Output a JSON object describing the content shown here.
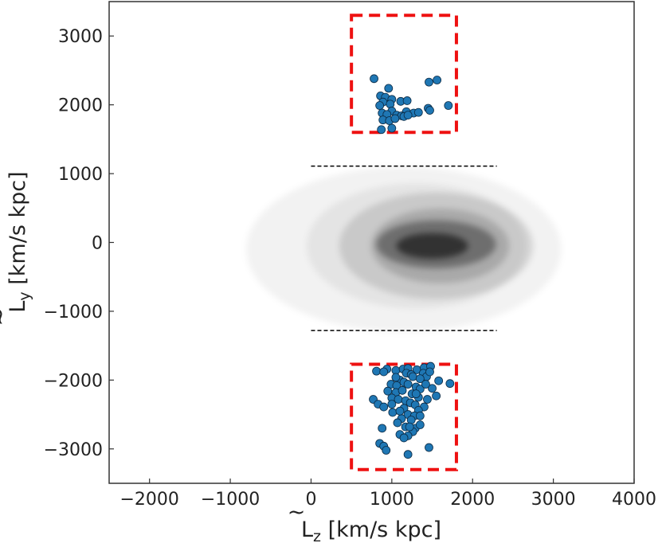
{
  "chart_data": {
    "type": "scatter",
    "title": "",
    "xlabel": {
      "tilde": "~",
      "base": "L",
      "sub": "z",
      "units": " [km/s kpc]"
    },
    "ylabel": {
      "tilde": "~",
      "base": "L",
      "sub": "y",
      "units": " [km/s kpc]"
    },
    "xlim": [
      -2500,
      4000
    ],
    "ylim": [
      -3500,
      3500
    ],
    "xticks": [
      -2000,
      -1000,
      0,
      1000,
      2000,
      3000,
      4000
    ],
    "yticks": [
      -3000,
      -2000,
      -1000,
      0,
      1000,
      2000,
      3000
    ],
    "xtick_labels": [
      "−2000",
      "−1000",
      "0",
      "1000",
      "2000",
      "3000",
      "4000"
    ],
    "ytick_labels": [
      "−3000",
      "−2000",
      "−1000",
      "0",
      "1000",
      "2000",
      "3000"
    ],
    "grid": false,
    "legend": "none",
    "colors": {
      "points": "#1f77b4",
      "point_edge": "#0b2a44",
      "boxes": "#ee1111",
      "reference_lines": "#000000",
      "density": "#000000"
    },
    "background_density": {
      "description_kind": "2D histogram of full sample (grey)",
      "core_center": [
        1500,
        -50
      ],
      "core_extent_x": [
        400,
        2800
      ],
      "core_extent_y": [
        -900,
        650
      ],
      "halo_extent_x": [
        -1000,
        2900
      ],
      "halo_extent_y": [
        -1300,
        1100
      ]
    },
    "reference_lines": [
      {
        "x": [
          0,
          2300
        ],
        "y": 1110
      },
      {
        "x": [
          0,
          2300
        ],
        "y": -1280
      }
    ],
    "selection_boxes": [
      {
        "x": [
          500,
          1800
        ],
        "y": [
          1600,
          3300
        ]
      },
      {
        "x": [
          500,
          1800
        ],
        "y": [
          -3300,
          -1770
        ]
      }
    ],
    "series": [
      {
        "group": "upper",
        "points": [
          [
            780,
            2380
          ],
          [
            960,
            2240
          ],
          [
            860,
            2130
          ],
          [
            920,
            2110
          ],
          [
            1000,
            2080
          ],
          [
            890,
            2040
          ],
          [
            980,
            2010
          ],
          [
            850,
            1990
          ],
          [
            1110,
            2050
          ],
          [
            1190,
            2060
          ],
          [
            1460,
            2330
          ],
          [
            1560,
            2360
          ],
          [
            1700,
            1990
          ],
          [
            1450,
            1950
          ],
          [
            1470,
            1920
          ],
          [
            1000,
            1910
          ],
          [
            1180,
            1900
          ],
          [
            1270,
            1880
          ],
          [
            1330,
            1890
          ],
          [
            880,
            1880
          ],
          [
            940,
            1860
          ],
          [
            1060,
            1850
          ],
          [
            1120,
            1840
          ],
          [
            1150,
            1830
          ],
          [
            1200,
            1850
          ],
          [
            890,
            1780
          ],
          [
            970,
            1770
          ],
          [
            1040,
            1800
          ],
          [
            1000,
            1660
          ],
          [
            870,
            1640
          ]
        ]
      },
      {
        "group": "lower",
        "points": [
          [
            940,
            -1840
          ],
          [
            810,
            -1870
          ],
          [
            900,
            -1880
          ],
          [
            1050,
            -1860
          ],
          [
            1140,
            -1840
          ],
          [
            1200,
            -1830
          ],
          [
            1310,
            -1850
          ],
          [
            1400,
            -1820
          ],
          [
            1480,
            -1800
          ],
          [
            1180,
            -1900
          ],
          [
            1240,
            -1920
          ],
          [
            1260,
            -1950
          ],
          [
            1390,
            -1900
          ],
          [
            1430,
            -1950
          ],
          [
            1470,
            -1880
          ],
          [
            1580,
            -2010
          ],
          [
            1720,
            -2050
          ],
          [
            1100,
            -2000
          ],
          [
            1150,
            -2030
          ],
          [
            1200,
            -2060
          ],
          [
            990,
            -2060
          ],
          [
            1060,
            -2080
          ],
          [
            1300,
            -2100
          ],
          [
            1350,
            -2130
          ],
          [
            1500,
            -2120
          ],
          [
            950,
            -2160
          ],
          [
            1050,
            -2180
          ],
          [
            1130,
            -2150
          ],
          [
            1250,
            -2200
          ],
          [
            1330,
            -2250
          ],
          [
            1440,
            -2280
          ],
          [
            1550,
            -2230
          ],
          [
            1000,
            -2260
          ],
          [
            1080,
            -2280
          ],
          [
            1170,
            -2300
          ],
          [
            770,
            -2280
          ],
          [
            830,
            -2350
          ],
          [
            1230,
            -2330
          ],
          [
            1290,
            -2360
          ],
          [
            1400,
            -2390
          ],
          [
            900,
            -2390
          ],
          [
            1150,
            -2410
          ],
          [
            1330,
            -2440
          ],
          [
            1010,
            -2470
          ],
          [
            1200,
            -2500
          ],
          [
            1280,
            -2520
          ],
          [
            1350,
            -2520
          ],
          [
            1120,
            -2560
          ],
          [
            1240,
            -2580
          ],
          [
            1070,
            -2620
          ],
          [
            1170,
            -2680
          ],
          [
            1290,
            -2700
          ],
          [
            1350,
            -2650
          ],
          [
            880,
            -2700
          ],
          [
            1260,
            -2750
          ],
          [
            1100,
            -2790
          ],
          [
            1200,
            -2810
          ],
          [
            1150,
            -2840
          ],
          [
            850,
            -2920
          ],
          [
            900,
            -2960
          ],
          [
            1460,
            -2980
          ],
          [
            930,
            -3020
          ],
          [
            1200,
            -3080
          ],
          [
            1300,
            -2200
          ],
          [
            1000,
            -2350
          ],
          [
            1100,
            -2450
          ],
          [
            1220,
            -2680
          ],
          [
            1350,
            -1980
          ],
          [
            1420,
            -2060
          ],
          [
            1050,
            -1960
          ]
        ]
      }
    ]
  }
}
